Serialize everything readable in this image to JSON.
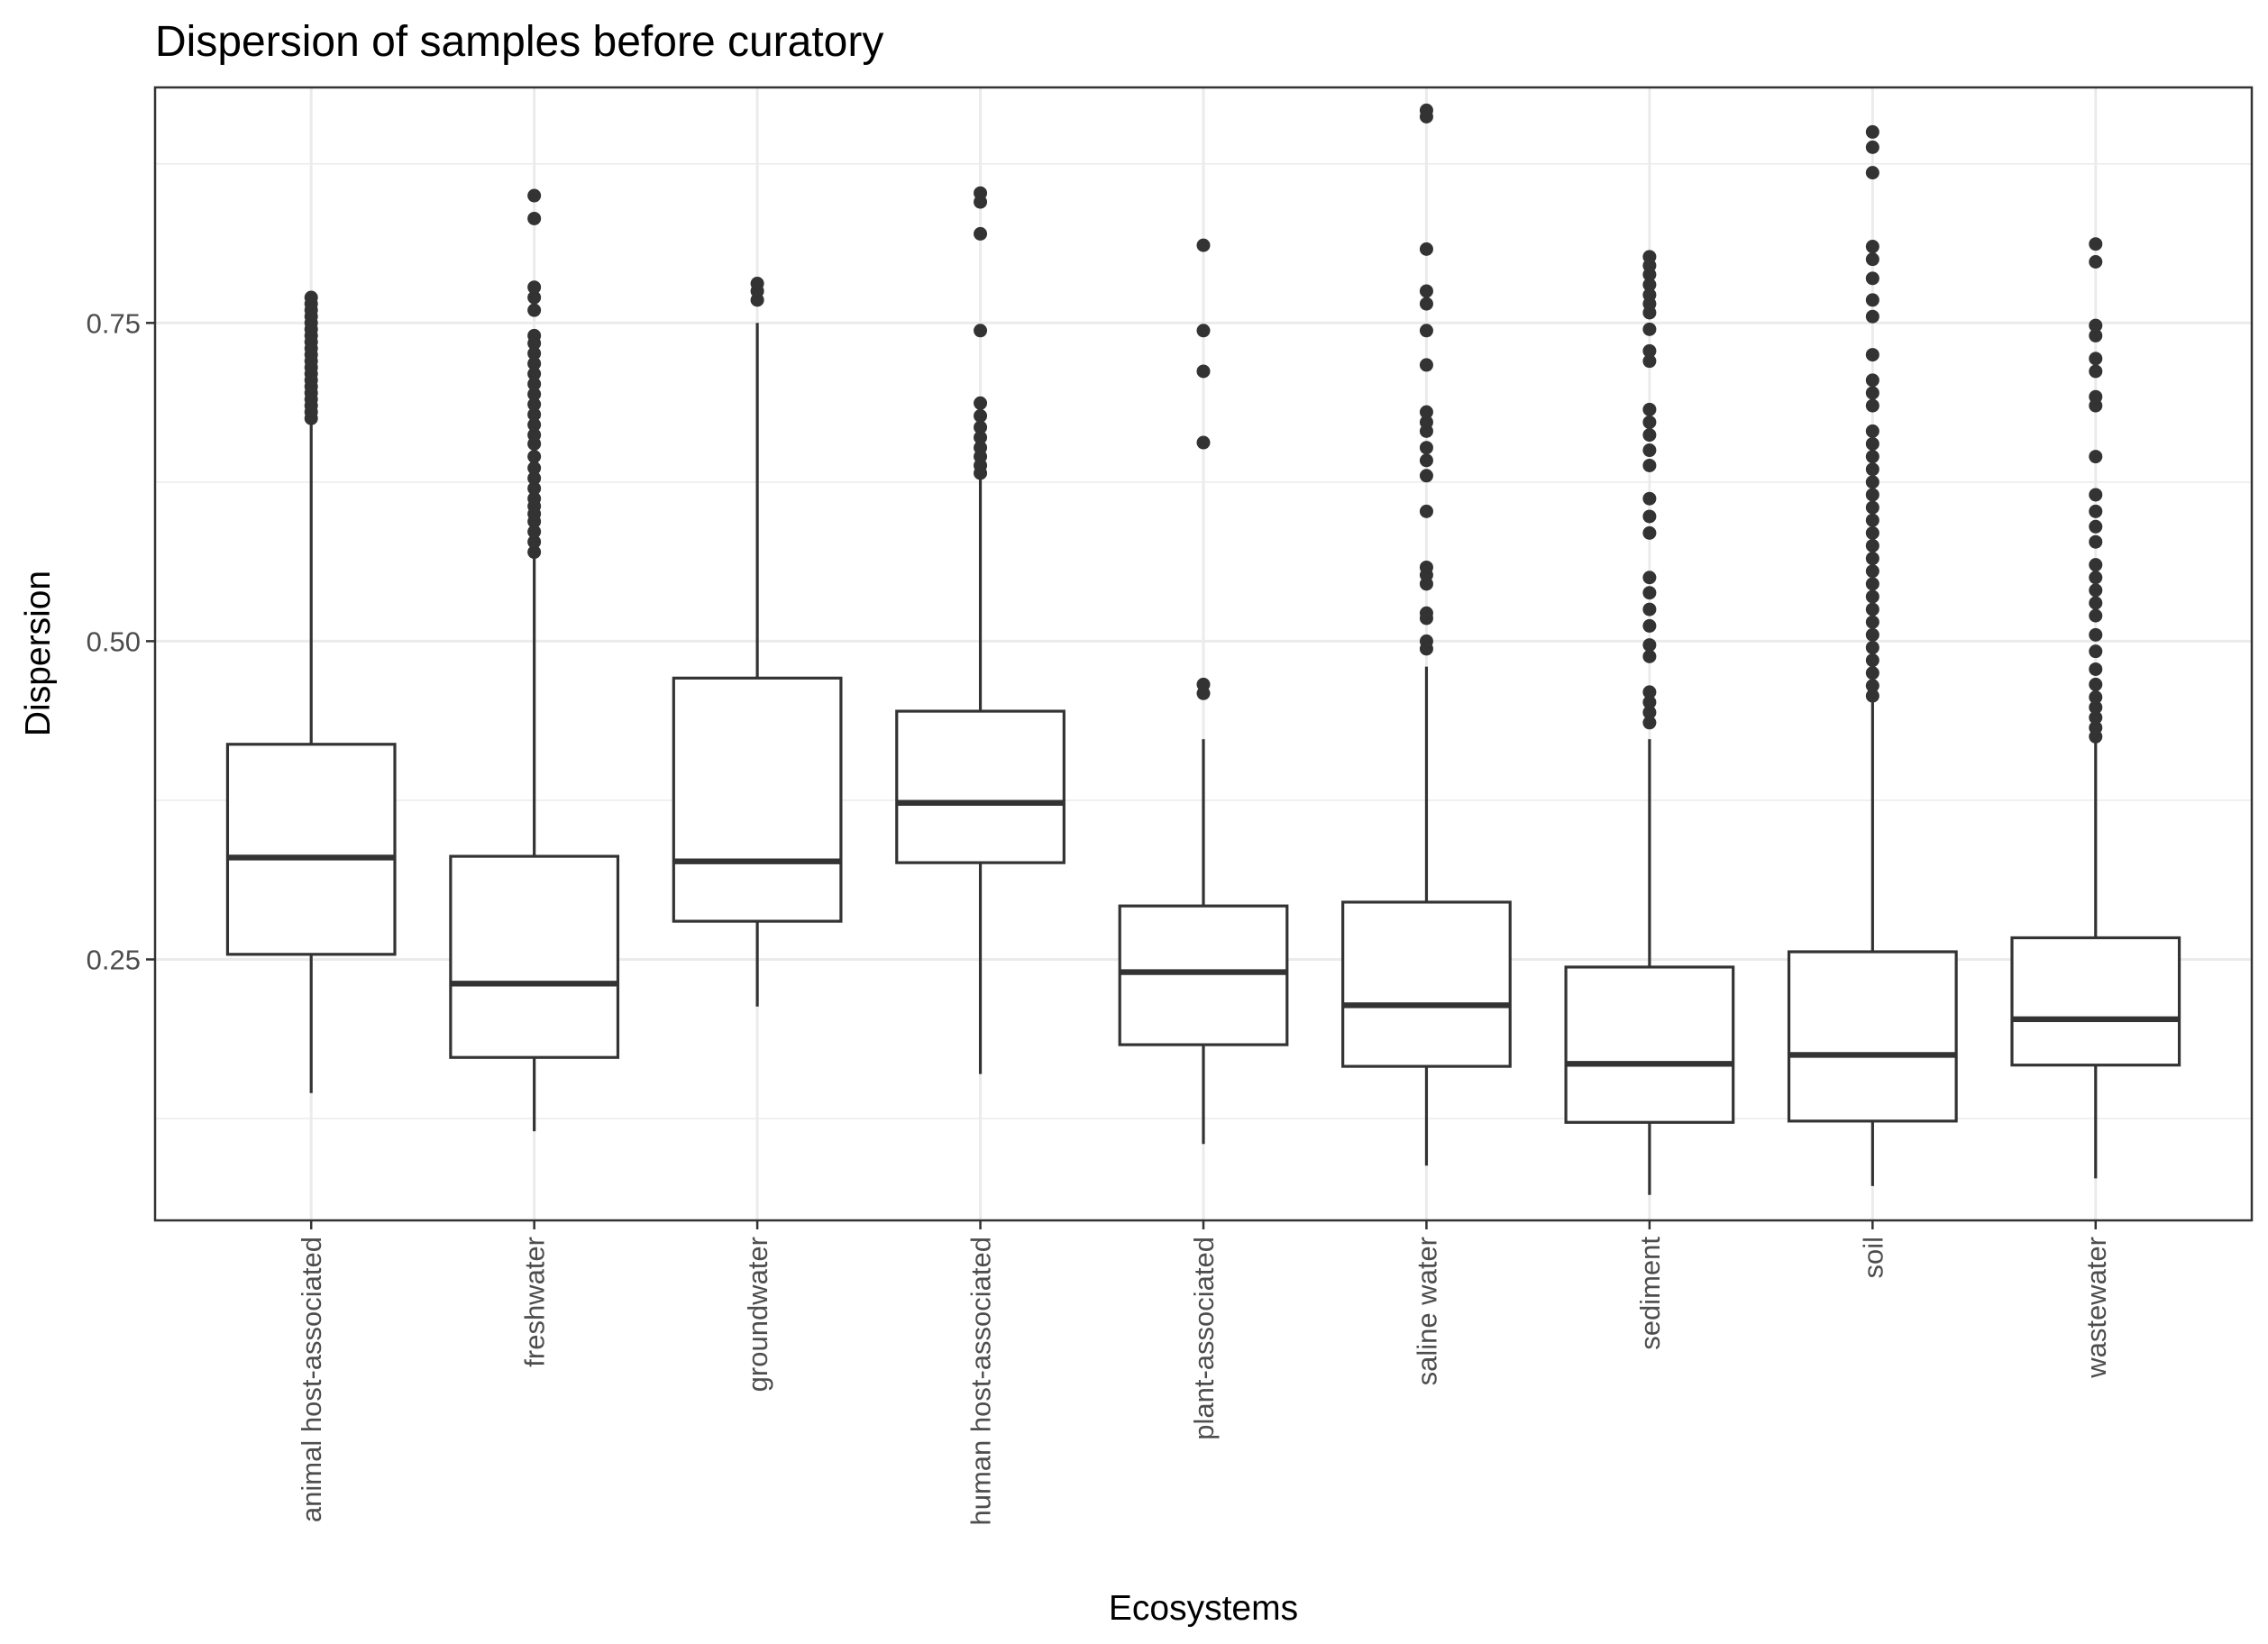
{
  "chart_data": {
    "type": "boxplot",
    "title": "Dispersion of samples before curatory",
    "xlabel": "Ecosystems",
    "ylabel": "Dispersion",
    "ylim": [
      0.045,
      0.935
    ],
    "y_major_ticks": [
      0.25,
      0.5,
      0.75
    ],
    "y_tick_labels": [
      "0.25",
      "0.50",
      "0.75"
    ],
    "y_minor_ticks": [
      0.125,
      0.375,
      0.625,
      0.875
    ],
    "grid": true,
    "categories": [
      "animal host-associated",
      "freshwater",
      "groundwater",
      "human host-associated",
      "plant-associated",
      "saline water",
      "sediment",
      "soil",
      "wastewater"
    ],
    "boxes": [
      {
        "min": 0.145,
        "q1": 0.254,
        "median": 0.33,
        "q3": 0.419,
        "max": 0.67,
        "outliers": [
          0.675,
          0.68,
          0.685,
          0.69,
          0.695,
          0.7,
          0.705,
          0.71,
          0.715,
          0.72,
          0.725,
          0.73,
          0.735,
          0.74,
          0.745,
          0.75,
          0.755,
          0.76,
          0.765,
          0.77
        ]
      },
      {
        "min": 0.115,
        "q1": 0.173,
        "median": 0.231,
        "q3": 0.331,
        "max": 0.567,
        "outliers": [
          0.57,
          0.578,
          0.586,
          0.594,
          0.6,
          0.606,
          0.612,
          0.62,
          0.628,
          0.636,
          0.645,
          0.655,
          0.662,
          0.67,
          0.678,
          0.686,
          0.694,
          0.702,
          0.71,
          0.718,
          0.726,
          0.734,
          0.74,
          0.76,
          0.77,
          0.778,
          0.832,
          0.85
        ]
      },
      {
        "min": 0.213,
        "q1": 0.28,
        "median": 0.327,
        "q3": 0.471,
        "max": 0.75,
        "outliers": [
          0.768,
          0.775,
          0.781
        ]
      },
      {
        "min": 0.16,
        "q1": 0.326,
        "median": 0.373,
        "q3": 0.445,
        "max": 0.628,
        "outliers": [
          0.632,
          0.638,
          0.645,
          0.652,
          0.66,
          0.668,
          0.677,
          0.687,
          0.744,
          0.82,
          0.845,
          0.852
        ]
      },
      {
        "min": 0.105,
        "q1": 0.183,
        "median": 0.24,
        "q3": 0.292,
        "max": 0.423,
        "outliers": [
          0.459,
          0.466,
          0.656,
          0.712,
          0.744,
          0.811
        ]
      },
      {
        "min": 0.088,
        "q1": 0.166,
        "median": 0.214,
        "q3": 0.295,
        "max": 0.48,
        "outliers": [
          0.494,
          0.5,
          0.518,
          0.522,
          0.545,
          0.552,
          0.558,
          0.602,
          0.63,
          0.642,
          0.652,
          0.665,
          0.672,
          0.68,
          0.717,
          0.744,
          0.765,
          0.775,
          0.808,
          0.912,
          0.917
        ]
      },
      {
        "min": 0.065,
        "q1": 0.122,
        "median": 0.168,
        "q3": 0.244,
        "max": 0.423,
        "outliers": [
          0.436,
          0.444,
          0.452,
          0.46,
          0.488,
          0.497,
          0.512,
          0.525,
          0.538,
          0.55,
          0.585,
          0.598,
          0.612,
          0.638,
          0.65,
          0.662,
          0.672,
          0.682,
          0.72,
          0.728,
          0.745,
          0.758,
          0.765,
          0.772,
          0.78,
          0.788,
          0.795,
          0.802
        ]
      },
      {
        "min": 0.072,
        "q1": 0.123,
        "median": 0.175,
        "q3": 0.256,
        "max": 0.453,
        "outliers": [
          0.457,
          0.465,
          0.475,
          0.485,
          0.495,
          0.505,
          0.515,
          0.525,
          0.535,
          0.545,
          0.555,
          0.565,
          0.575,
          0.585,
          0.595,
          0.605,
          0.615,
          0.625,
          0.635,
          0.645,
          0.655,
          0.665,
          0.685,
          0.695,
          0.705,
          0.725,
          0.755,
          0.768,
          0.785,
          0.8,
          0.81,
          0.868,
          0.888,
          0.9
        ]
      },
      {
        "min": 0.078,
        "q1": 0.167,
        "median": 0.203,
        "q3": 0.267,
        "max": 0.42,
        "outliers": [
          0.425,
          0.432,
          0.44,
          0.448,
          0.456,
          0.466,
          0.478,
          0.492,
          0.505,
          0.52,
          0.53,
          0.54,
          0.55,
          0.56,
          0.578,
          0.59,
          0.602,
          0.615,
          0.645,
          0.685,
          0.692,
          0.712,
          0.722,
          0.74,
          0.748,
          0.798,
          0.812
        ]
      }
    ]
  }
}
